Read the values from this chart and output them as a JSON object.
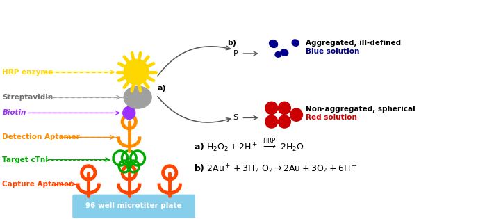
{
  "bg_color": "#ffffff",
  "hrp_color": "#FFD700",
  "streptavidin_color": "#A0A0A0",
  "biotin_color": "#9B30FF",
  "detection_aptamer_color": "#FF8C00",
  "target_ctni_color": "#00AA00",
  "capture_aptamer_color": "#FF4500",
  "plate_color": "#87CEEB",
  "blue_nps_color": "#00008B",
  "red_nps_color": "#CC0000",
  "label_hrp": "HRP enzyme",
  "label_strep": "Streptavidin",
  "label_biotin": "Biotin",
  "label_detection": "Detection Aptamer",
  "label_target": "Target cTnI",
  "label_capture": "Capture Aptamer",
  "label_plate": "96 well microtiter plate",
  "label_agg": "Aggregated, ill-defined",
  "label_blue_sol": "Blue solution",
  "label_nonagg": "Non-aggregated, spherical",
  "label_red_sol": "Red solution"
}
